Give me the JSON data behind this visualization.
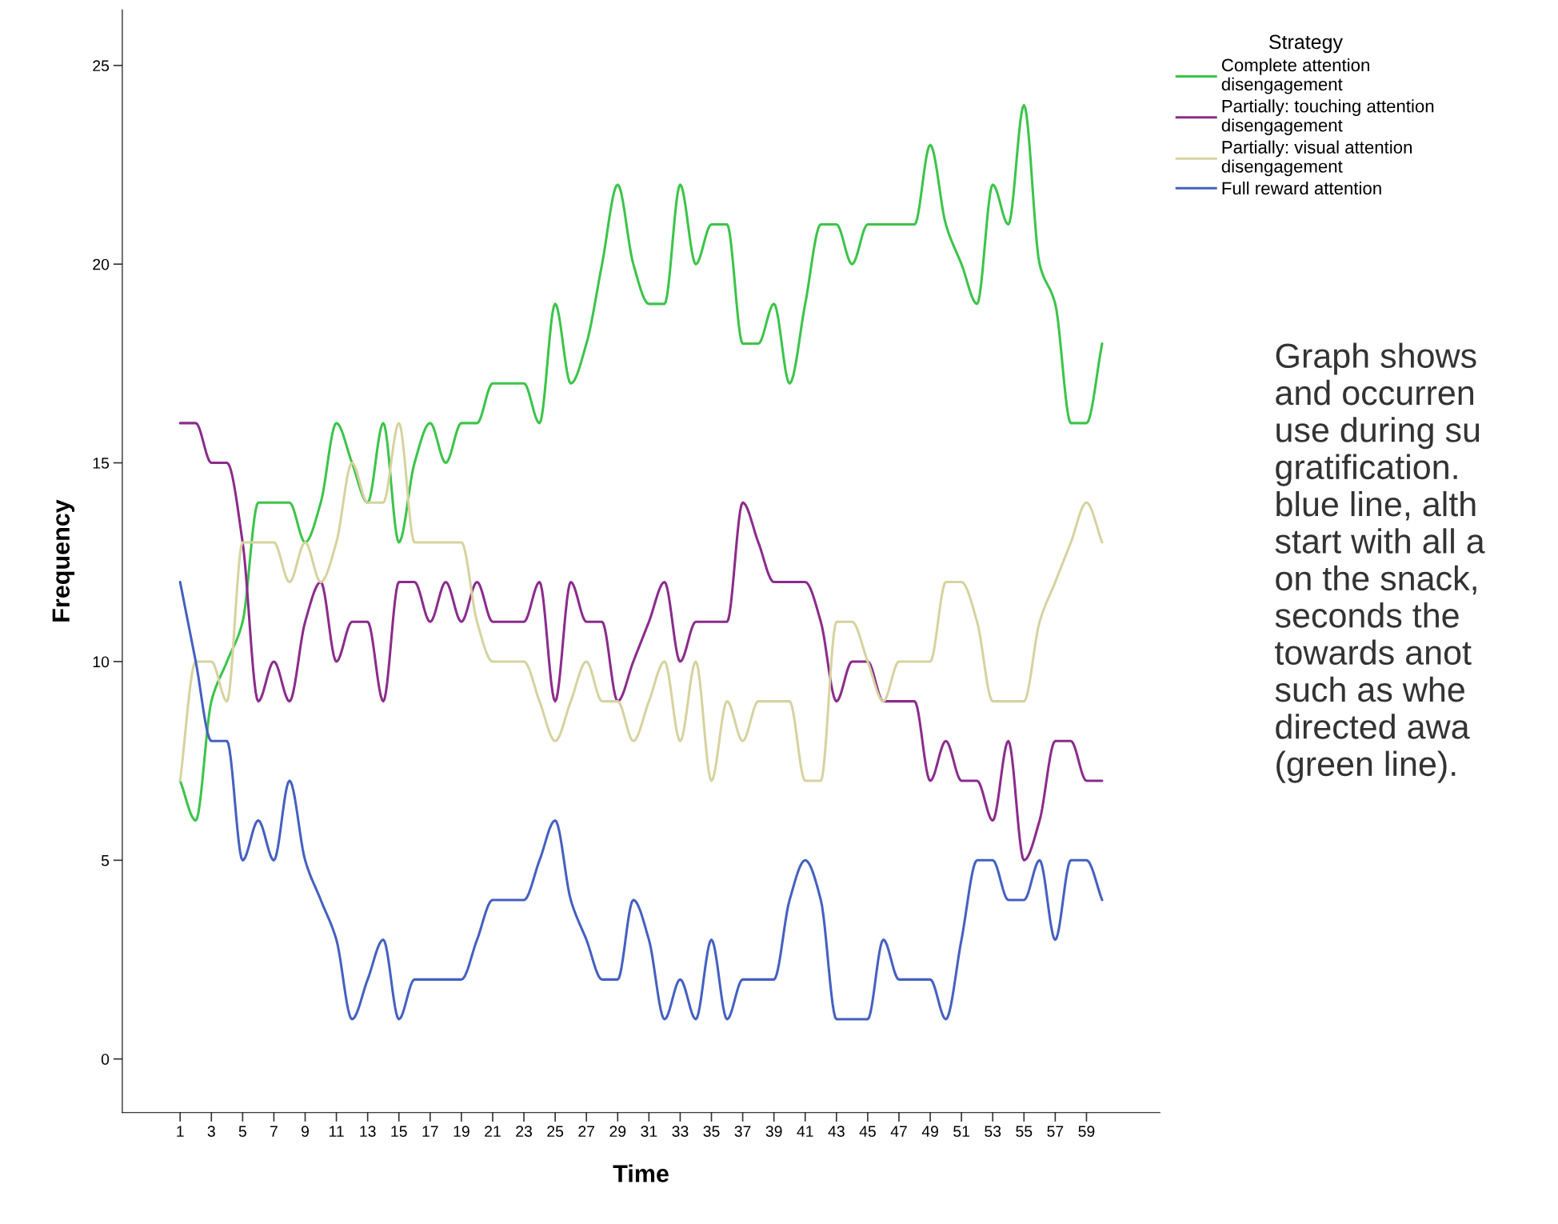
{
  "chart_data": {
    "type": "line",
    "xlabel": "Time",
    "ylabel": "Frequency",
    "legend_title": "Strategy",
    "categories": [
      "1",
      null,
      "3",
      null,
      "5",
      null,
      "7",
      null,
      "9",
      null,
      "11",
      null,
      "13",
      null,
      "15",
      null,
      "17",
      null,
      "19",
      null,
      "21",
      null,
      "23",
      null,
      "25",
      null,
      "27",
      null,
      "29",
      null,
      "31",
      null,
      "33",
      null,
      "35",
      null,
      "37",
      null,
      "39",
      null,
      "41",
      null,
      "43",
      null,
      "45",
      null,
      "47",
      null,
      "49",
      null,
      "51",
      null,
      "53",
      null,
      "55",
      null,
      "57",
      null,
      "59",
      null
    ],
    "series": [
      {
        "name": "Complete attention\ndisengagement",
        "color": "#3cc44a",
        "values": [
          7,
          6,
          9,
          10,
          11,
          14,
          14,
          14,
          13,
          14,
          16,
          15,
          14,
          16,
          13,
          15,
          16,
          15,
          16,
          16,
          17,
          17,
          17,
          16,
          19,
          17,
          18,
          20,
          22,
          20,
          19,
          19,
          22,
          20,
          21,
          21,
          18,
          18,
          19,
          17,
          19,
          21,
          21,
          20,
          21,
          21,
          21,
          21,
          23,
          21,
          20,
          19,
          22,
          21,
          24,
          20,
          19,
          16,
          16,
          18
        ]
      },
      {
        "name": "Partially: touching attention\ndisengagement",
        "color": "#8b2c8c",
        "values": [
          16,
          16,
          15,
          15,
          13,
          9,
          10,
          9,
          11,
          12,
          10,
          11,
          11,
          9,
          12,
          12,
          11,
          12,
          11,
          12,
          11,
          11,
          11,
          12,
          9,
          12,
          11,
          11,
          9,
          10,
          11,
          12,
          10,
          11,
          11,
          11,
          14,
          13,
          12,
          12,
          12,
          11,
          9,
          10,
          10,
          9,
          9,
          9,
          7,
          8,
          7,
          7,
          6,
          8,
          5,
          6,
          8,
          8,
          7,
          7
        ]
      },
      {
        "name": "Partially: visual attention\ndisengagement",
        "color": "#d6d3a0",
        "values": [
          7,
          10,
          10,
          9,
          13,
          13,
          13,
          12,
          13,
          12,
          13,
          15,
          14,
          14,
          16,
          13,
          13,
          13,
          13,
          11,
          10,
          10,
          10,
          9,
          8,
          9,
          10,
          9,
          9,
          8,
          9,
          10,
          8,
          10,
          7,
          9,
          8,
          9,
          9,
          9,
          7,
          7,
          11,
          11,
          10,
          9,
          10,
          10,
          10,
          12,
          12,
          11,
          9,
          9,
          9,
          11,
          12,
          13,
          14,
          13
        ]
      },
      {
        "name": "Full reward attention",
        "color": "#4560c0",
        "values": [
          12,
          10,
          8,
          8,
          5,
          6,
          5,
          7,
          5,
          4,
          3,
          1,
          2,
          3,
          1,
          2,
          2,
          2,
          2,
          3,
          4,
          4,
          4,
          5,
          6,
          4,
          3,
          2,
          2,
          4,
          3,
          1,
          2,
          1,
          3,
          1,
          2,
          2,
          2,
          4,
          5,
          4,
          1,
          1,
          1,
          3,
          2,
          2,
          2,
          1,
          3,
          5,
          5,
          4,
          4,
          5,
          3,
          5,
          5,
          4
        ]
      }
    ],
    "ylim": [
      -1.35,
      26.4
    ],
    "yticks": [
      0,
      5,
      10,
      15,
      20,
      25
    ],
    "grid": false,
    "legend": "top right",
    "marker": "none",
    "line_style": "solid",
    "annotations": [
      "Graph shows\nand occurren\nuse during su\ngratification.\nblue line, alth\nstart with all a\non the snack,\nseconds the\ntowards anot\nsuch as whe\ndirected awa\n(green line)."
    ]
  }
}
